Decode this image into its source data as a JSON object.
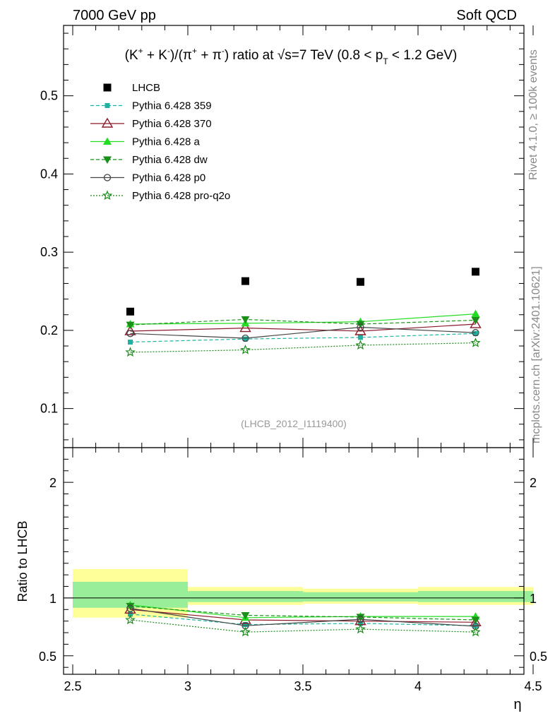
{
  "header": {
    "left": "7000 GeV pp",
    "right": "Soft QCD"
  },
  "side_labels": {
    "top": "Rivet 4.1.0, ≥ 100k events",
    "bottom": "mcplots.cern.ch [arXiv:2401.10621]"
  },
  "chart_data": [
    {
      "panel": "main",
      "type": "scatter",
      "title_parts": {
        "p1": "(K",
        "s1": "+",
        "p2": " + K",
        "s2": "-",
        "p3": ")/(π",
        "s3": "+",
        "p4": " + π",
        "s4": "-",
        "p5": ") ratio at ",
        "sqrt": "√",
        "p6": "s=7 TeV (0.8 < p",
        "sub": "T",
        "p7": " < 1.2 GeV)"
      },
      "watermark": "(LHCB_2012_I1119400)",
      "xlim": [
        2.5,
        4.5
      ],
      "ylim": [
        0.05,
        0.59
      ],
      "yticks": [
        0.1,
        0.2,
        0.3,
        0.4,
        0.5
      ],
      "ytick_labels": [
        "0.1",
        "0.2",
        "0.3",
        "0.4",
        "0.5"
      ],
      "x": [
        2.75,
        3.25,
        3.75,
        4.25
      ],
      "x_bins": [
        [
          2.5,
          3.0
        ],
        [
          3.0,
          3.5
        ],
        [
          3.5,
          4.0
        ],
        [
          4.0,
          4.5
        ]
      ],
      "series": [
        {
          "name": "LHCB",
          "values": [
            0.224,
            0.263,
            0.262,
            0.275
          ],
          "color": "#000000",
          "marker": "square",
          "dash": "none"
        },
        {
          "name": "Pythia 6.428 359",
          "values": [
            0.185,
            0.189,
            0.191,
            0.196
          ],
          "color": "#20b2a0",
          "marker": "square-small",
          "dash": "dashed"
        },
        {
          "name": "Pythia 6.428 370",
          "values": [
            0.199,
            0.203,
            0.199,
            0.208
          ],
          "color": "#8b1a2b",
          "marker": "triangle-open",
          "dash": "solid"
        },
        {
          "name": "Pythia 6.428 a",
          "values": [
            0.208,
            0.209,
            0.211,
            0.221
          ],
          "color": "#22dd22",
          "marker": "triangle",
          "dash": "solid"
        },
        {
          "name": "Pythia 6.428 dw",
          "values": [
            0.207,
            0.214,
            0.208,
            0.213
          ],
          "color": "#1a8f1a",
          "marker": "triangle-down",
          "dash": "dashed"
        },
        {
          "name": "Pythia 6.428 p0",
          "values": [
            0.196,
            0.19,
            0.204,
            0.197
          ],
          "color": "#444444",
          "marker": "circle-open",
          "dash": "solid"
        },
        {
          "name": "Pythia 6.428 pro-q2o",
          "values": [
            0.172,
            0.175,
            0.181,
            0.184
          ],
          "color": "#1a8a1a",
          "marker": "star",
          "dash": "dotted"
        }
      ]
    },
    {
      "panel": "ratio",
      "type": "scatter",
      "ylabel": "Ratio to LHCB",
      "xlabel": "η",
      "xlim": [
        2.5,
        4.5
      ],
      "ylim": [
        0.34,
        2.3
      ],
      "yticks": [
        0.5,
        1,
        2
      ],
      "ytick_labels": [
        "0.5",
        "1",
        "2"
      ],
      "xticks": [
        2.5,
        3,
        3.5,
        4,
        4.5
      ],
      "xtick_labels": [
        "2.5",
        "3",
        "3.5",
        "4",
        "4.5"
      ],
      "x": [
        2.75,
        3.25,
        3.75,
        4.25
      ],
      "bands": [
        {
          "x0": 2.5,
          "x1": 3.0,
          "inner": [
            0.915,
            1.14
          ],
          "outer": [
            0.83,
            1.25
          ]
        },
        {
          "x0": 3.0,
          "x1": 3.5,
          "inner": [
            0.965,
            1.06
          ],
          "outer": [
            0.94,
            1.095
          ]
        },
        {
          "x0": 3.5,
          "x1": 4.0,
          "inner": [
            0.97,
            1.05
          ],
          "outer": [
            0.95,
            1.08
          ]
        },
        {
          "x0": 4.0,
          "x1": 4.5,
          "inner": [
            0.965,
            1.06
          ],
          "outer": [
            0.94,
            1.095
          ]
        }
      ],
      "series": [
        {
          "name": "Pythia 6.428 359",
          "values": [
            0.86,
            0.77,
            0.78,
            0.76
          ]
        },
        {
          "name": "Pythia 6.428 370",
          "values": [
            0.9,
            0.81,
            0.8,
            0.79
          ]
        },
        {
          "name": "Pythia 6.428 a",
          "values": [
            0.94,
            0.83,
            0.84,
            0.84
          ]
        },
        {
          "name": "Pythia 6.428 dw",
          "values": [
            0.93,
            0.85,
            0.835,
            0.81
          ]
        },
        {
          "name": "Pythia 6.428 p0",
          "values": [
            0.91,
            0.76,
            0.815,
            0.755
          ]
        },
        {
          "name": "Pythia 6.428 pro-q2o",
          "values": [
            0.81,
            0.705,
            0.73,
            0.705
          ]
        }
      ]
    }
  ]
}
